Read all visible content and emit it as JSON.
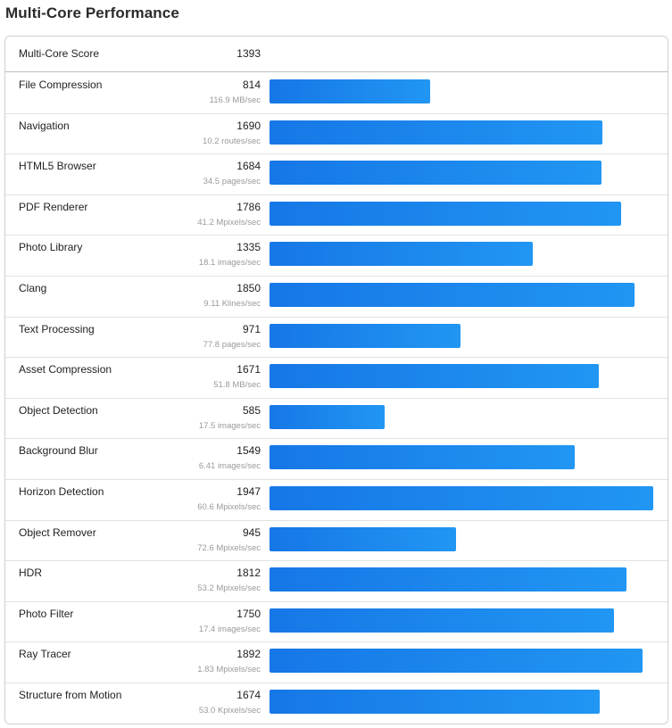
{
  "page": {
    "title": "Multi-Core Performance"
  },
  "summary": {
    "label": "Multi-Core Score",
    "value": "1393"
  },
  "colors": {
    "bar_start": "#1677e6",
    "bar_end": "#2196f3",
    "rate_text": "#9a9a9a"
  },
  "chart_data": {
    "type": "bar",
    "orientation": "horizontal",
    "title": "Multi-Core Performance",
    "xlim": [
      0,
      1947
    ],
    "categories": [
      "File Compression",
      "Navigation",
      "HTML5 Browser",
      "PDF Renderer",
      "Photo Library",
      "Clang",
      "Text Processing",
      "Asset Compression",
      "Object Detection",
      "Background Blur",
      "Horizon Detection",
      "Object Remover",
      "HDR",
      "Photo Filter",
      "Ray Tracer",
      "Structure from Motion"
    ],
    "values": [
      814,
      1690,
      1684,
      1786,
      1335,
      1850,
      971,
      1671,
      585,
      1549,
      1947,
      945,
      1812,
      1750,
      1892,
      1674
    ],
    "rates": [
      "116.9 MB/sec",
      "10.2 routes/sec",
      "34.5 pages/sec",
      "41.2 Mpixels/sec",
      "18.1 images/sec",
      "9.11 Klines/sec",
      "77.8 pages/sec",
      "51.8 MB/sec",
      "17.5 images/sec",
      "6.41 images/sec",
      "60.6 Mpixels/sec",
      "72.6 Mpixels/sec",
      "53.2 Mpixels/sec",
      "17.4 images/sec",
      "1.83 Mpixels/sec",
      "53.0 Kpixels/sec"
    ]
  }
}
